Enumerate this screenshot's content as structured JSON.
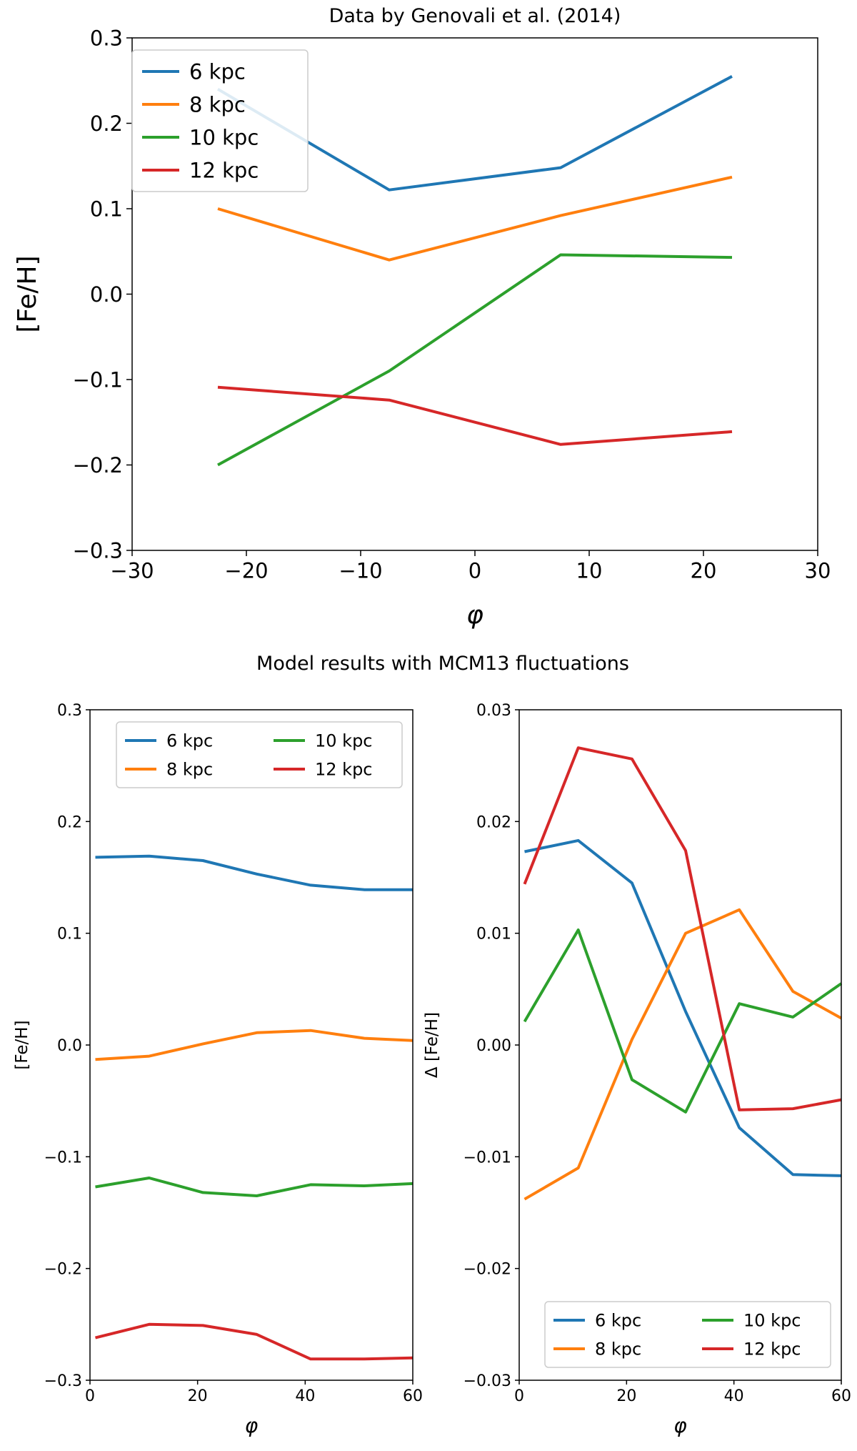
{
  "figure_title": "Model results with MCM13 fluctuations",
  "colors": {
    "6 kpc": "#1f77b4",
    "8 kpc": "#ff7f0e",
    "10 kpc": "#2ca02c",
    "12 kpc": "#d62728"
  },
  "chart_data": [
    {
      "type": "line",
      "title": "Data by Genovali et al. (2014)",
      "xlabel": "φ",
      "ylabel": "[Fe/H]",
      "xlim": [
        -30,
        30
      ],
      "ylim": [
        -0.3,
        0.3
      ],
      "xticks": [
        -30,
        -20,
        -10,
        0,
        10,
        20,
        30
      ],
      "xtick_labels": [
        "−30",
        "−20",
        "−10",
        "0",
        "10",
        "20",
        "30"
      ],
      "yticks": [
        -0.3,
        -0.2,
        -0.1,
        0.0,
        0.1,
        0.2,
        0.3
      ],
      "ytick_labels": [
        "−0.3",
        "−0.2",
        "−0.1",
        "0.0",
        "0.1",
        "0.2",
        "0.3"
      ],
      "legend": {
        "position": "top-left",
        "ncol": 1
      },
      "x": [
        -22.5,
        -7.5,
        7.5,
        22.5
      ],
      "series": [
        {
          "name": "6 kpc",
          "values": [
            0.24,
            0.122,
            0.148,
            0.255
          ]
        },
        {
          "name": "8 kpc",
          "values": [
            0.1,
            0.04,
            0.092,
            0.137
          ]
        },
        {
          "name": "10 kpc",
          "values": [
            -0.2,
            -0.09,
            0.046,
            0.043
          ]
        },
        {
          "name": "12 kpc",
          "values": [
            -0.109,
            -0.124,
            -0.176,
            -0.161
          ]
        }
      ]
    },
    {
      "type": "line",
      "title": "",
      "xlabel": "φ",
      "ylabel": "[Fe/H]",
      "xlim": [
        0,
        60
      ],
      "ylim": [
        -0.3,
        0.3
      ],
      "xticks": [
        0,
        20,
        40,
        60
      ],
      "xtick_labels": [
        "0",
        "20",
        "40",
        "60"
      ],
      "yticks": [
        -0.3,
        -0.2,
        -0.1,
        0.0,
        0.1,
        0.2,
        0.3
      ],
      "ytick_labels": [
        "−0.3",
        "−0.2",
        "−0.1",
        "0.0",
        "0.1",
        "0.2",
        "0.3"
      ],
      "legend": {
        "position": "top-center",
        "ncol": 2
      },
      "x": [
        1,
        11,
        21,
        31,
        41,
        51,
        60
      ],
      "series": [
        {
          "name": "6 kpc",
          "values": [
            0.168,
            0.169,
            0.165,
            0.153,
            0.143,
            0.139,
            0.139
          ]
        },
        {
          "name": "8 kpc",
          "values": [
            -0.013,
            -0.01,
            0.001,
            0.011,
            0.013,
            0.006,
            0.004
          ]
        },
        {
          "name": "10 kpc",
          "values": [
            -0.127,
            -0.119,
            -0.132,
            -0.135,
            -0.125,
            -0.126,
            -0.124
          ]
        },
        {
          "name": "12 kpc",
          "values": [
            -0.262,
            -0.25,
            -0.251,
            -0.259,
            -0.281,
            -0.281,
            -0.28
          ]
        }
      ]
    },
    {
      "type": "line",
      "title": "",
      "xlabel": "φ",
      "ylabel": "Δ [Fe/H]",
      "xlim": [
        0,
        60
      ],
      "ylim": [
        -0.03,
        0.03
      ],
      "xticks": [
        0,
        20,
        40,
        60
      ],
      "xtick_labels": [
        "0",
        "20",
        "40",
        "60"
      ],
      "yticks": [
        -0.03,
        -0.02,
        -0.01,
        0.0,
        0.01,
        0.02,
        0.03
      ],
      "ytick_labels": [
        "−0.03",
        "−0.02",
        "−0.01",
        "0.00",
        "0.01",
        "0.02",
        "0.03"
      ],
      "legend": {
        "position": "bottom-center",
        "ncol": 2
      },
      "x": [
        1,
        11,
        21,
        31,
        41,
        51,
        60
      ],
      "series": [
        {
          "name": "6 kpc",
          "values": [
            0.0173,
            0.0183,
            0.0145,
            0.003,
            -0.0074,
            -0.0116,
            -0.0117
          ]
        },
        {
          "name": "8 kpc",
          "values": [
            -0.0138,
            -0.011,
            0.0005,
            0.01,
            0.0121,
            0.0048,
            0.0024
          ]
        },
        {
          "name": "10 kpc",
          "values": [
            0.0021,
            0.0103,
            -0.0031,
            -0.006,
            0.0037,
            0.0025,
            0.0055
          ]
        },
        {
          "name": "12 kpc",
          "values": [
            0.0144,
            0.0266,
            0.0256,
            0.0174,
            -0.0058,
            -0.0057,
            -0.0049
          ]
        }
      ]
    }
  ]
}
